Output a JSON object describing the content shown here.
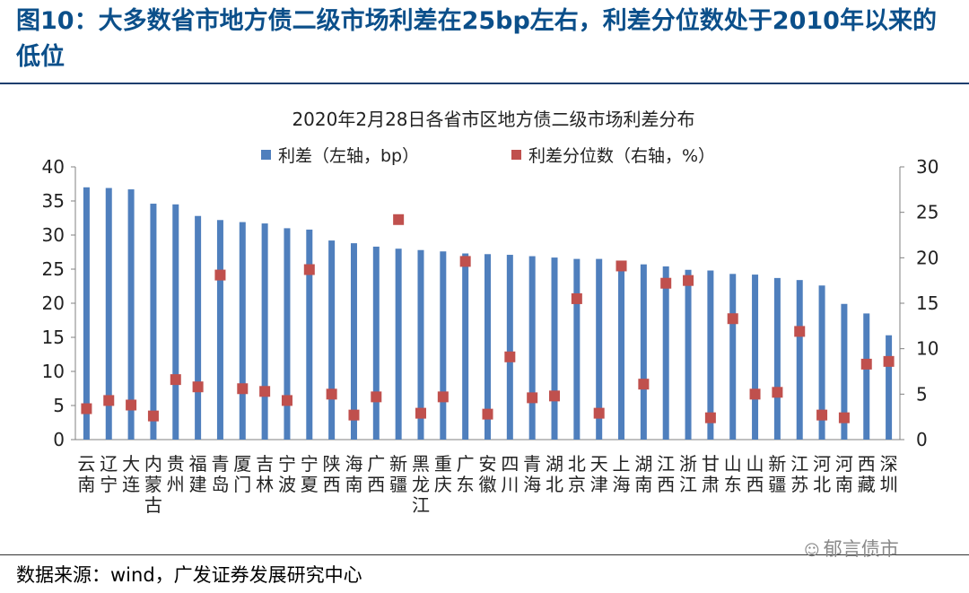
{
  "figure_title": "图10：大多数省市地方债二级市场利差在25bp左右，利差分位数处于2010年以来的低位",
  "source_text": "数据来源：wind，广发证券发展研究中心",
  "watermark": {
    "icon": "wechat-icon",
    "text": "郁言债市"
  },
  "colors": {
    "title": "#0b4f8a",
    "bar": "#4f7fbd",
    "marker": "#c0504d",
    "rule": "#1d3e6e"
  },
  "chart_data": {
    "type": "bar",
    "title": "2020年2月28日各省市区地方债二级市场利差分布",
    "legend_position": "top-center",
    "categories": [
      "云南",
      "辽宁",
      "大连",
      "内蒙古",
      "贵州",
      "福建",
      "青岛",
      "厦门",
      "吉林",
      "宁波",
      "宁夏",
      "陕西",
      "海南",
      "广西",
      "新疆",
      "黑龙江",
      "重庆",
      "广东",
      "安徽",
      "四川",
      "青海",
      "湖北",
      "北京",
      "天津",
      "上海",
      "湖南",
      "江西",
      "浙江",
      "甘肃",
      "山东",
      "山西",
      "新疆",
      "江苏",
      "河北",
      "河南",
      "西藏",
      "深圳"
    ],
    "y_left": {
      "label": "利差（左轴，bp）",
      "ylim": [
        0,
        40
      ],
      "ticks": [
        0,
        5,
        10,
        15,
        20,
        25,
        30,
        35,
        40
      ]
    },
    "y_right": {
      "label": "利差分位数（右轴，%）",
      "ylim": [
        0,
        30
      ],
      "ticks": [
        0,
        5,
        10,
        15,
        20,
        25,
        30
      ]
    },
    "series": [
      {
        "name": "利差（左轴，bp）",
        "type": "bar",
        "axis": "left",
        "values": [
          37,
          36.9,
          36.7,
          34.6,
          34.5,
          32.8,
          32.2,
          31.9,
          31.7,
          31,
          30.8,
          29.2,
          28.8,
          28.3,
          28,
          27.8,
          27.6,
          27.3,
          27.2,
          27.1,
          26.9,
          26.7,
          26.5,
          26.5,
          26.2,
          25.7,
          25.4,
          24.9,
          24.8,
          24.3,
          24.2,
          23.7,
          23.4,
          22.6,
          19.9,
          18.5,
          15.3
        ]
      },
      {
        "name": "利差分位数（右轴，%）",
        "type": "scatter",
        "axis": "right",
        "values": [
          3.4,
          4.3,
          3.8,
          2.6,
          6.6,
          5.8,
          18.1,
          5.6,
          5.3,
          4.3,
          18.7,
          5.0,
          2.7,
          4.7,
          24.2,
          2.9,
          4.7,
          19.6,
          2.8,
          9.1,
          4.6,
          4.8,
          15.5,
          2.9,
          19.1,
          6.1,
          17.2,
          17.5,
          2.4,
          13.3,
          5.0,
          5.2,
          11.9,
          2.7,
          2.4,
          8.3,
          8.6
        ]
      }
    ]
  }
}
